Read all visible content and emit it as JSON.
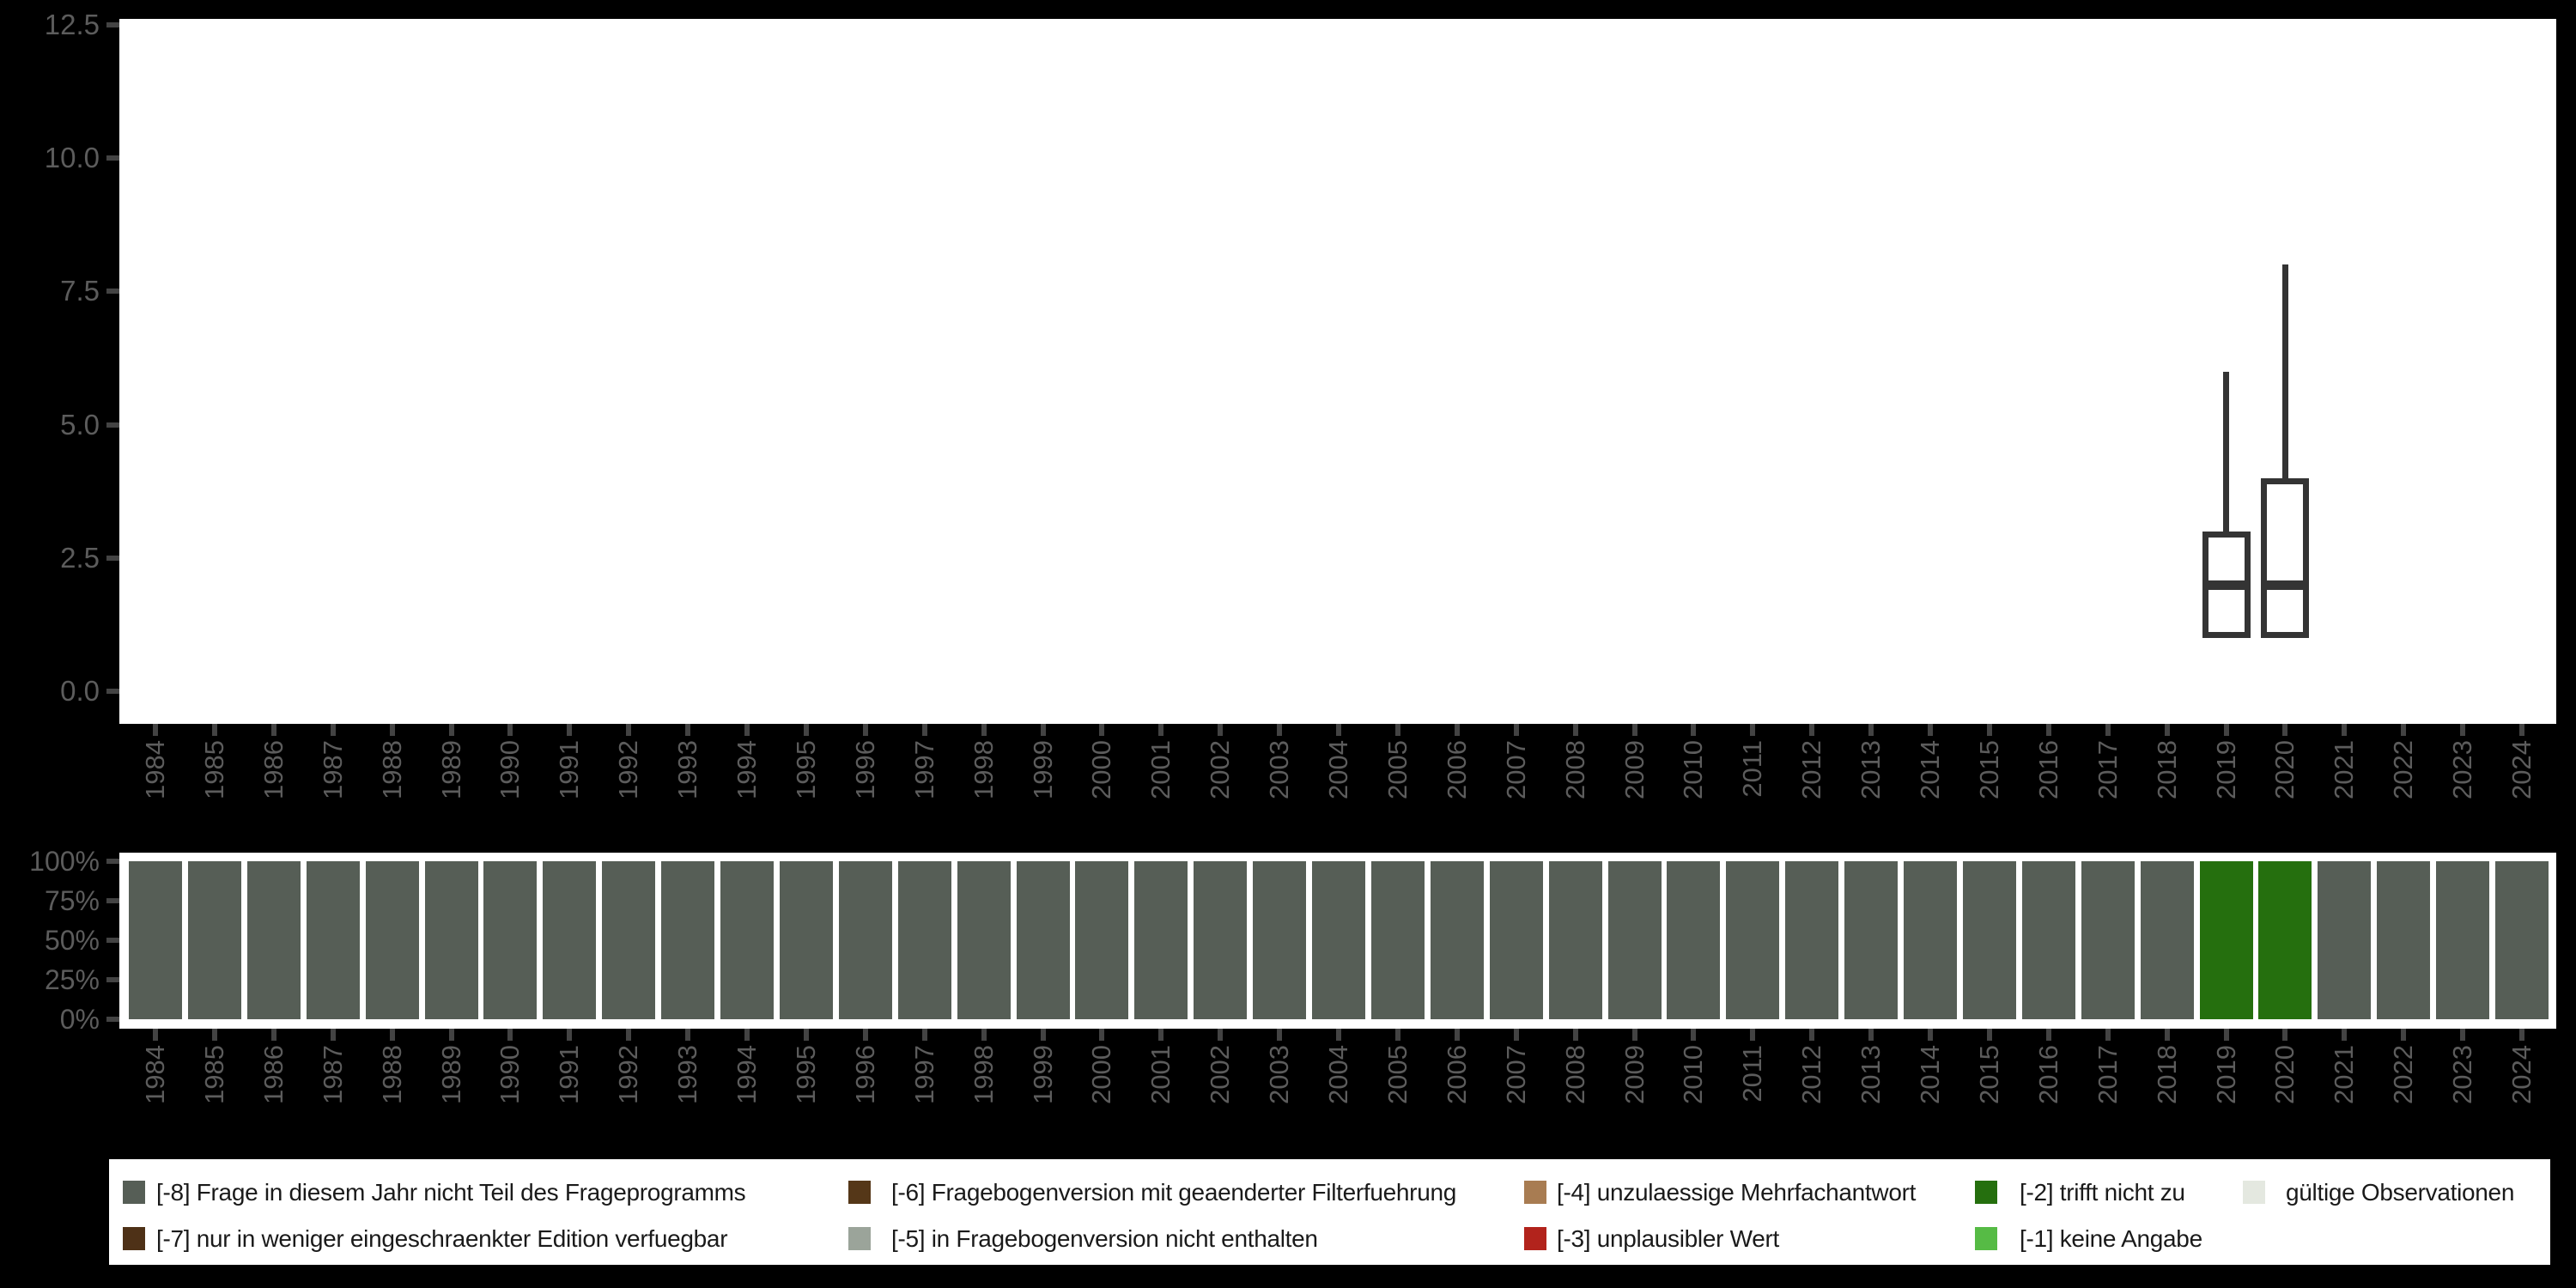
{
  "figure": {
    "background_color": "#000000",
    "panel_color": "#ffffff",
    "axis_text_color": "#5c5c5c",
    "box_stroke_color": "#343434"
  },
  "chart_data": [
    {
      "type": "boxplot",
      "title": "",
      "xlabel": "",
      "ylabel": "",
      "ylim": [
        0,
        12.5
      ],
      "yticks": [
        "0.0",
        "2.5",
        "5.0",
        "7.5",
        "10.0",
        "12.5"
      ],
      "grid": false,
      "legend_position": "none",
      "categories": [
        "1984",
        "1985",
        "1986",
        "1987",
        "1988",
        "1989",
        "1990",
        "1991",
        "1992",
        "1993",
        "1994",
        "1995",
        "1996",
        "1997",
        "1998",
        "1999",
        "2000",
        "2001",
        "2002",
        "2003",
        "2004",
        "2005",
        "2006",
        "2007",
        "2008",
        "2009",
        "2010",
        "2011",
        "2012",
        "2013",
        "2014",
        "2015",
        "2016",
        "2017",
        "2018",
        "2019",
        "2020",
        "2021",
        "2022",
        "2023",
        "2024"
      ],
      "series": [
        {
          "category": "2019",
          "min": 1,
          "q1": 1,
          "median": 2,
          "q3": 3,
          "max": 6
        },
        {
          "category": "2020",
          "min": 1,
          "q1": 1,
          "median": 2,
          "q3": 4,
          "max": 8
        }
      ]
    },
    {
      "type": "bar",
      "subtype": "percent-stacked",
      "title": "",
      "xlabel": "",
      "ylabel": "",
      "ylim": [
        0,
        100
      ],
      "yticks": [
        "0%",
        "25%",
        "50%",
        "75%",
        "100%"
      ],
      "grid": false,
      "legend_position": "bottom",
      "categories": [
        "1984",
        "1985",
        "1986",
        "1987",
        "1988",
        "1989",
        "1990",
        "1991",
        "1992",
        "1993",
        "1994",
        "1995",
        "1996",
        "1997",
        "1998",
        "1999",
        "2000",
        "2001",
        "2002",
        "2003",
        "2004",
        "2005",
        "2006",
        "2007",
        "2008",
        "2009",
        "2010",
        "2011",
        "2012",
        "2013",
        "2014",
        "2015",
        "2016",
        "2017",
        "2018",
        "2019",
        "2020",
        "2021",
        "2022",
        "2023",
        "2024"
      ],
      "series": [
        {
          "name": "[-8] Frage in diesem Jahr nicht Teil des Frageprogramms",
          "color": "#565E56",
          "values": [
            100,
            100,
            100,
            100,
            100,
            100,
            100,
            100,
            100,
            100,
            100,
            100,
            100,
            100,
            100,
            100,
            100,
            100,
            100,
            100,
            100,
            100,
            100,
            100,
            100,
            100,
            100,
            100,
            100,
            100,
            100,
            100,
            100,
            100,
            100,
            0,
            0,
            100,
            100,
            100,
            100
          ]
        },
        {
          "name": "[-2] trifft nicht zu",
          "color": "#256F0E",
          "values": [
            0,
            0,
            0,
            0,
            0,
            0,
            0,
            0,
            0,
            0,
            0,
            0,
            0,
            0,
            0,
            0,
            0,
            0,
            0,
            0,
            0,
            0,
            0,
            0,
            0,
            0,
            0,
            0,
            0,
            0,
            0,
            0,
            0,
            0,
            0,
            100,
            100,
            0,
            0,
            0,
            0
          ]
        }
      ]
    }
  ],
  "legend": {
    "items": [
      {
        "code": "-8",
        "label": "[-8] Frage in diesem Jahr nicht Teil des Frageprogramms",
        "color": "#565E56",
        "col": 1,
        "row": 1
      },
      {
        "code": "-7",
        "label": "[-7] nur in weniger eingeschraenkter Edition verfuegbar",
        "color": "#4E3117",
        "col": 1,
        "row": 2
      },
      {
        "code": "-6",
        "label": "[-6] Fragebogenversion mit geaenderter Filterfuehrung",
        "color": "#553718",
        "col": 2,
        "row": 1
      },
      {
        "code": "-5",
        "label": "[-5] in Fragebogenversion nicht enthalten",
        "color": "#9BA49A",
        "col": 2,
        "row": 2
      },
      {
        "code": "-4",
        "label": "[-4] unzulaessige Mehrfachantwort",
        "color": "#A87C52",
        "col": 3,
        "row": 1
      },
      {
        "code": "-3",
        "label": "[-3] unplausibler Wert",
        "color": "#B2231C",
        "col": 3,
        "row": 2
      },
      {
        "code": "-2",
        "label": "[-2] trifft nicht zu",
        "color": "#256F0E",
        "col": 4,
        "row": 1
      },
      {
        "code": "-1",
        "label": "[-1] keine Angabe",
        "color": "#56BB45",
        "col": 4,
        "row": 2
      },
      {
        "code": "valid",
        "label": "gültige Observationen",
        "color": "#E4E8E0",
        "col": 5,
        "row": 1
      }
    ]
  }
}
